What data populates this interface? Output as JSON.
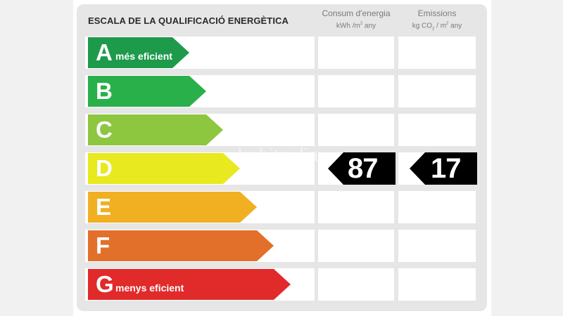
{
  "title": "ESCALA DE LA QUALIFICACIÓ ENERGÈTICA",
  "columns": {
    "consumption": {
      "label": "Consum d'energia",
      "unit_prefix": "kWh /m",
      "unit_sup": "2",
      "unit_suffix": " any"
    },
    "emissions": {
      "label": "Emissions",
      "unit_prefix": "kg CO",
      "unit_sub": "2",
      "unit_mid": " / m",
      "unit_sup": "2",
      "unit_suffix": " any"
    }
  },
  "ratings": [
    {
      "letter": "A",
      "label": "més eficient",
      "color": "#1e9a4b"
    },
    {
      "letter": "B",
      "label": "",
      "color": "#29b04a"
    },
    {
      "letter": "C",
      "label": "",
      "color": "#8dc63f"
    },
    {
      "letter": "D",
      "label": "",
      "color": "#e8e91f"
    },
    {
      "letter": "E",
      "label": "",
      "color": "#f0b021"
    },
    {
      "letter": "F",
      "label": "",
      "color": "#e2702a"
    },
    {
      "letter": "G",
      "label": "menys eficient",
      "color": "#e12a2a"
    }
  ],
  "current_rating": "D",
  "values": {
    "consumption": "87",
    "emissions": "17"
  },
  "watermark": "habitaclia"
}
